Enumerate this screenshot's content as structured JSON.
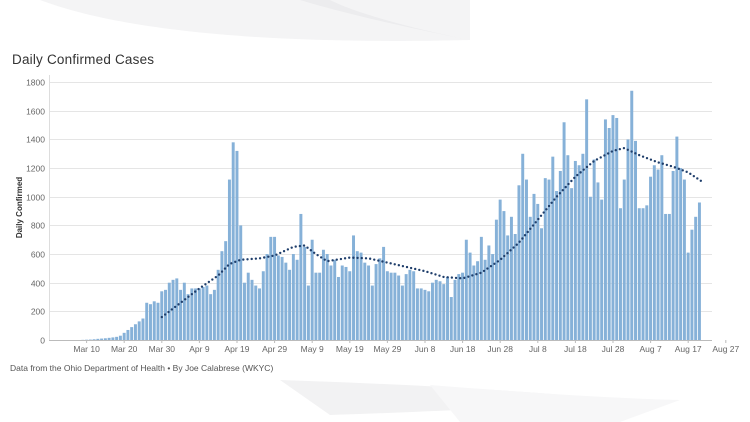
{
  "chart": {
    "title": "Daily Confirmed Cases",
    "footer": "Data from the Ohio Department of Health • By Joe Calabrese (WKYC)"
  },
  "colors": {
    "bar": "#86b1d8",
    "bar_edge": "#6f9fcb",
    "trend": "#1f3e6b",
    "grid": "#e5e5e5",
    "axis_text": "#666666"
  },
  "chart_data": {
    "type": "bar",
    "title": "Daily Confirmed Cases",
    "xlabel": "",
    "ylabel": "Daily Confirmed",
    "ylim": [
      0,
      1850
    ],
    "yticks": [
      0,
      200,
      400,
      600,
      800,
      1000,
      1200,
      1400,
      1600,
      1800
    ],
    "grid": true,
    "start_date": "Mar 4",
    "xtick_labels": [
      "Mar 10",
      "Mar 20",
      "Mar 30",
      "Apr 9",
      "Apr 19",
      "Apr 29",
      "May 9",
      "May 19",
      "May 29",
      "Jun 8",
      "Jun 18",
      "Jun 28",
      "Jul 8",
      "Jul 18",
      "Jul 28",
      "Aug 7",
      "Aug 17",
      "Aug 27"
    ],
    "xtick_day_index": [
      6,
      16,
      26,
      36,
      46,
      56,
      66,
      76,
      86,
      96,
      106,
      116,
      126,
      136,
      146,
      156,
      166,
      176
    ],
    "series": [
      {
        "name": "Daily confirmed cases",
        "kind": "bar",
        "first_day_index": 5,
        "values": [
          1,
          2,
          3,
          5,
          8,
          10,
          12,
          15,
          18,
          22,
          30,
          50,
          70,
          90,
          110,
          130,
          150,
          260,
          250,
          270,
          260,
          340,
          350,
          400,
          420,
          430,
          350,
          400,
          320,
          360,
          360,
          360,
          370,
          380,
          320,
          350,
          490,
          620,
          690,
          1120,
          1380,
          1320,
          800,
          400,
          470,
          420,
          380,
          360,
          480,
          600,
          720,
          720,
          590,
          580,
          540,
          490,
          600,
          560,
          880,
          650,
          380,
          700,
          470,
          470,
          630,
          600,
          520,
          560,
          440,
          520,
          510,
          480,
          730,
          620,
          610,
          540,
          520,
          380,
          530,
          570,
          650,
          480,
          470,
          470,
          450,
          380,
          460,
          490,
          480,
          360,
          360,
          350,
          340,
          400,
          420,
          410,
          390,
          440,
          300,
          420,
          460,
          470,
          700,
          610,
          520,
          550,
          720,
          560,
          660,
          600,
          840,
          980,
          900,
          730,
          860,
          740,
          1080,
          1300,
          1120,
          860,
          1020,
          950,
          780,
          1130,
          1120,
          1280,
          1040,
          1180,
          1520,
          1290,
          1060,
          1250,
          1220,
          1300,
          1680,
          1000,
          1260,
          1100,
          980,
          1540,
          1480,
          1570,
          1550,
          920,
          1120,
          1400,
          1740,
          1390,
          920,
          920,
          940,
          1140,
          1220,
          1190,
          1290,
          880,
          880,
          1180,
          1420,
          1200,
          1120,
          610,
          770,
          860,
          960
        ]
      },
      {
        "name": "7-day average",
        "kind": "dotted-line",
        "points": [
          [
            26,
            160
          ],
          [
            31,
            260
          ],
          [
            36,
            360
          ],
          [
            41,
            450
          ],
          [
            44,
            530
          ],
          [
            47,
            560
          ],
          [
            52,
            570
          ],
          [
            56,
            590
          ],
          [
            61,
            650
          ],
          [
            64,
            660
          ],
          [
            67,
            600
          ],
          [
            70,
            550
          ],
          [
            76,
            575
          ],
          [
            81,
            570
          ],
          [
            86,
            540
          ],
          [
            91,
            510
          ],
          [
            96,
            480
          ],
          [
            101,
            440
          ],
          [
            106,
            430
          ],
          [
            111,
            470
          ],
          [
            116,
            560
          ],
          [
            121,
            680
          ],
          [
            126,
            840
          ],
          [
            131,
            1000
          ],
          [
            136,
            1140
          ],
          [
            141,
            1250
          ],
          [
            146,
            1320
          ],
          [
            149,
            1340
          ],
          [
            153,
            1290
          ],
          [
            158,
            1240
          ],
          [
            162,
            1210
          ],
          [
            166,
            1170
          ],
          [
            170,
            1100
          ]
        ]
      }
    ]
  }
}
